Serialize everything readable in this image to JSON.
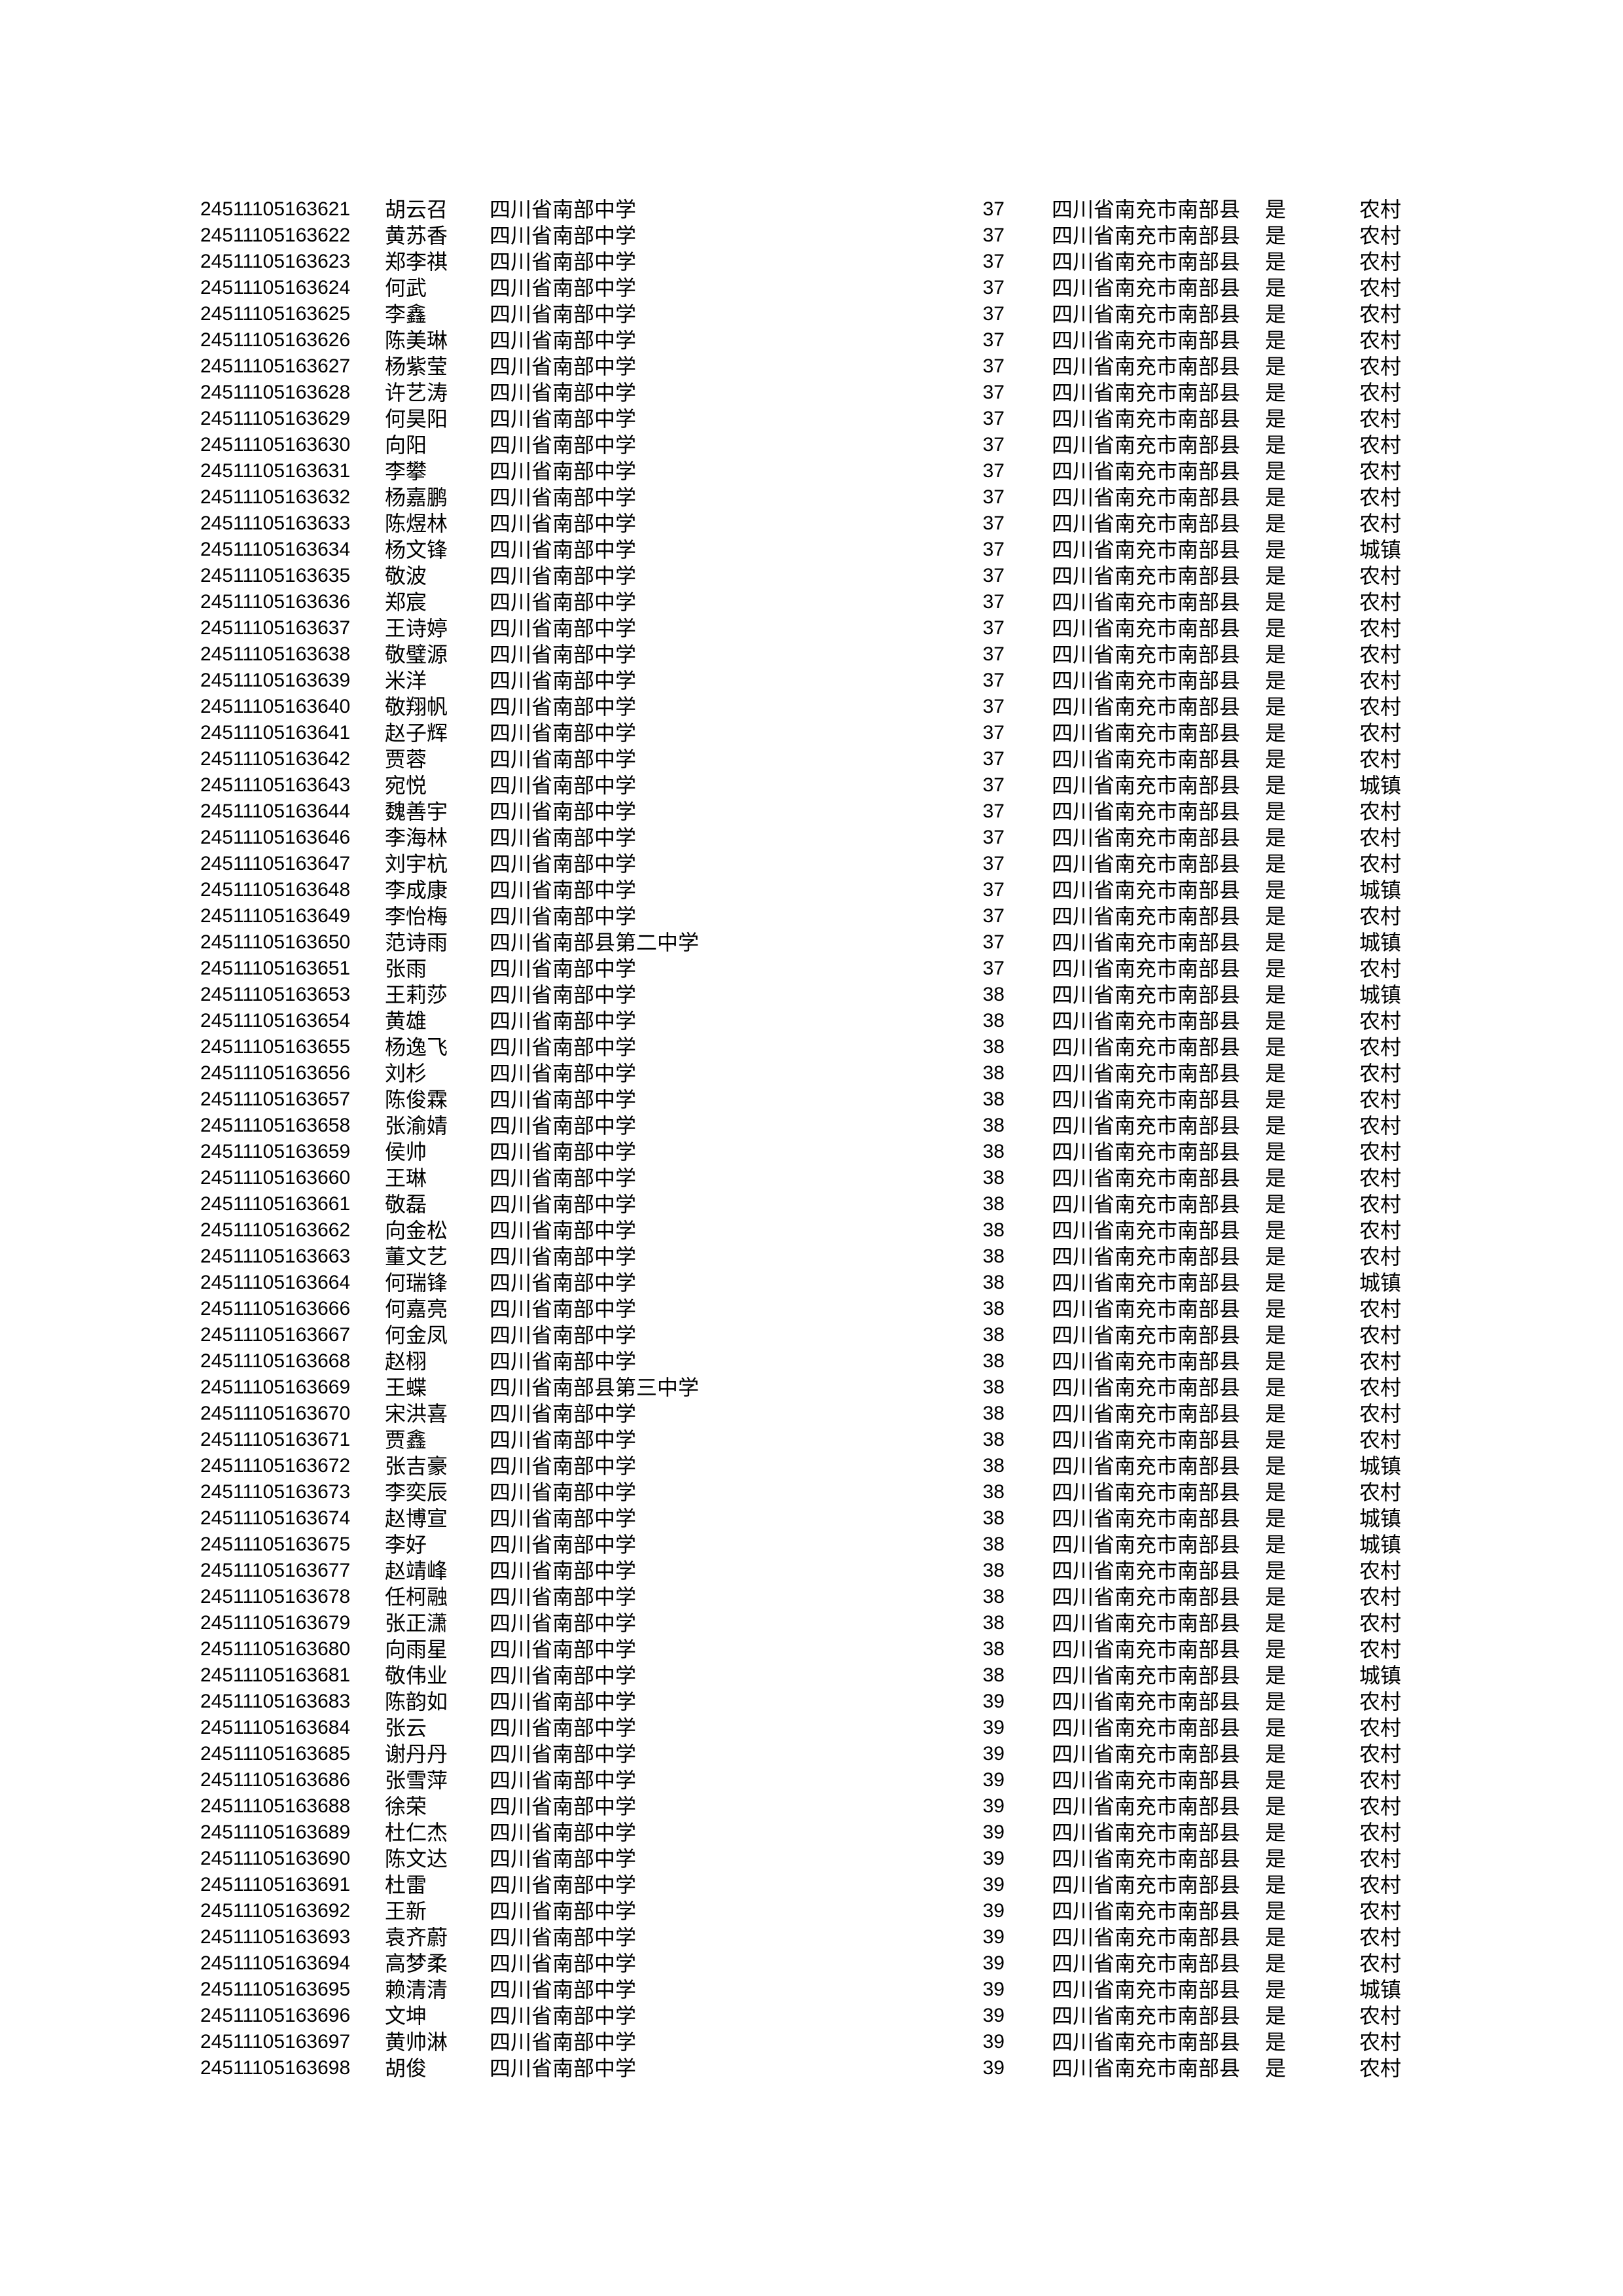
{
  "table": {
    "region_all": "四川省南充市南部县",
    "rows": [
      {
        "id": "24511105163621",
        "name": "胡云召",
        "school": "四川省南部中学",
        "num": "37",
        "region": "四川省南充市南部县",
        "flag": "是",
        "res": "农村"
      },
      {
        "id": "24511105163622",
        "name": "黄苏香",
        "school": "四川省南部中学",
        "num": "37",
        "region": "四川省南充市南部县",
        "flag": "是",
        "res": "农村"
      },
      {
        "id": "24511105163623",
        "name": "郑李祺",
        "school": "四川省南部中学",
        "num": "37",
        "region": "四川省南充市南部县",
        "flag": "是",
        "res": "农村"
      },
      {
        "id": "24511105163624",
        "name": "何武",
        "school": "四川省南部中学",
        "num": "37",
        "region": "四川省南充市南部县",
        "flag": "是",
        "res": "农村"
      },
      {
        "id": "24511105163625",
        "name": "李鑫",
        "school": "四川省南部中学",
        "num": "37",
        "region": "四川省南充市南部县",
        "flag": "是",
        "res": "农村"
      },
      {
        "id": "24511105163626",
        "name": "陈美琳",
        "school": "四川省南部中学",
        "num": "37",
        "region": "四川省南充市南部县",
        "flag": "是",
        "res": "农村"
      },
      {
        "id": "24511105163627",
        "name": "杨紫莹",
        "school": "四川省南部中学",
        "num": "37",
        "region": "四川省南充市南部县",
        "flag": "是",
        "res": "农村"
      },
      {
        "id": "24511105163628",
        "name": "许艺涛",
        "school": "四川省南部中学",
        "num": "37",
        "region": "四川省南充市南部县",
        "flag": "是",
        "res": "农村"
      },
      {
        "id": "24511105163629",
        "name": "何昊阳",
        "school": "四川省南部中学",
        "num": "37",
        "region": "四川省南充市南部县",
        "flag": "是",
        "res": "农村"
      },
      {
        "id": "24511105163630",
        "name": "向阳",
        "school": "四川省南部中学",
        "num": "37",
        "region": "四川省南充市南部县",
        "flag": "是",
        "res": "农村"
      },
      {
        "id": "24511105163631",
        "name": "李攀",
        "school": "四川省南部中学",
        "num": "37",
        "region": "四川省南充市南部县",
        "flag": "是",
        "res": "农村"
      },
      {
        "id": "24511105163632",
        "name": "杨嘉鹏",
        "school": "四川省南部中学",
        "num": "37",
        "region": "四川省南充市南部县",
        "flag": "是",
        "res": "农村"
      },
      {
        "id": "24511105163633",
        "name": "陈煜林",
        "school": "四川省南部中学",
        "num": "37",
        "region": "四川省南充市南部县",
        "flag": "是",
        "res": "农村"
      },
      {
        "id": "24511105163634",
        "name": "杨文锋",
        "school": "四川省南部中学",
        "num": "37",
        "region": "四川省南充市南部县",
        "flag": "是",
        "res": "城镇"
      },
      {
        "id": "24511105163635",
        "name": "敬波",
        "school": "四川省南部中学",
        "num": "37",
        "region": "四川省南充市南部县",
        "flag": "是",
        "res": "农村"
      },
      {
        "id": "24511105163636",
        "name": "郑宸",
        "school": "四川省南部中学",
        "num": "37",
        "region": "四川省南充市南部县",
        "flag": "是",
        "res": "农村"
      },
      {
        "id": "24511105163637",
        "name": "王诗婷",
        "school": "四川省南部中学",
        "num": "37",
        "region": "四川省南充市南部县",
        "flag": "是",
        "res": "农村"
      },
      {
        "id": "24511105163638",
        "name": "敬璧源",
        "school": "四川省南部中学",
        "num": "37",
        "region": "四川省南充市南部县",
        "flag": "是",
        "res": "农村"
      },
      {
        "id": "24511105163639",
        "name": "米洋",
        "school": "四川省南部中学",
        "num": "37",
        "region": "四川省南充市南部县",
        "flag": "是",
        "res": "农村"
      },
      {
        "id": "24511105163640",
        "name": "敬翔帆",
        "school": "四川省南部中学",
        "num": "37",
        "region": "四川省南充市南部县",
        "flag": "是",
        "res": "农村"
      },
      {
        "id": "24511105163641",
        "name": "赵子辉",
        "school": "四川省南部中学",
        "num": "37",
        "region": "四川省南充市南部县",
        "flag": "是",
        "res": "农村"
      },
      {
        "id": "24511105163642",
        "name": "贾蓉",
        "school": "四川省南部中学",
        "num": "37",
        "region": "四川省南充市南部县",
        "flag": "是",
        "res": "农村"
      },
      {
        "id": "24511105163643",
        "name": "宛悦",
        "school": "四川省南部中学",
        "num": "37",
        "region": "四川省南充市南部县",
        "flag": "是",
        "res": "城镇"
      },
      {
        "id": "24511105163644",
        "name": "魏善宇",
        "school": "四川省南部中学",
        "num": "37",
        "region": "四川省南充市南部县",
        "flag": "是",
        "res": "农村"
      },
      {
        "id": "24511105163646",
        "name": "李海林",
        "school": "四川省南部中学",
        "num": "37",
        "region": "四川省南充市南部县",
        "flag": "是",
        "res": "农村"
      },
      {
        "id": "24511105163647",
        "name": "刘宇杭",
        "school": "四川省南部中学",
        "num": "37",
        "region": "四川省南充市南部县",
        "flag": "是",
        "res": "农村"
      },
      {
        "id": "24511105163648",
        "name": "李成康",
        "school": "四川省南部中学",
        "num": "37",
        "region": "四川省南充市南部县",
        "flag": "是",
        "res": "城镇"
      },
      {
        "id": "24511105163649",
        "name": "李怡梅",
        "school": "四川省南部中学",
        "num": "37",
        "region": "四川省南充市南部县",
        "flag": "是",
        "res": "农村"
      },
      {
        "id": "24511105163650",
        "name": "范诗雨",
        "school": "四川省南部县第二中学",
        "num": "37",
        "region": "四川省南充市南部县",
        "flag": "是",
        "res": "城镇"
      },
      {
        "id": "24511105163651",
        "name": "张雨",
        "school": "四川省南部中学",
        "num": "37",
        "region": "四川省南充市南部县",
        "flag": "是",
        "res": "农村"
      },
      {
        "id": "24511105163653",
        "name": "王莉莎",
        "school": "四川省南部中学",
        "num": "38",
        "region": "四川省南充市南部县",
        "flag": "是",
        "res": "城镇"
      },
      {
        "id": "24511105163654",
        "name": "黄雄",
        "school": "四川省南部中学",
        "num": "38",
        "region": "四川省南充市南部县",
        "flag": "是",
        "res": "农村"
      },
      {
        "id": "24511105163655",
        "name": "杨逸飞",
        "school": "四川省南部中学",
        "num": "38",
        "region": "四川省南充市南部县",
        "flag": "是",
        "res": "农村"
      },
      {
        "id": "24511105163656",
        "name": "刘杉",
        "school": "四川省南部中学",
        "num": "38",
        "region": "四川省南充市南部县",
        "flag": "是",
        "res": "农村"
      },
      {
        "id": "24511105163657",
        "name": "陈俊霖",
        "school": "四川省南部中学",
        "num": "38",
        "region": "四川省南充市南部县",
        "flag": "是",
        "res": "农村"
      },
      {
        "id": "24511105163658",
        "name": "张渝婧",
        "school": "四川省南部中学",
        "num": "38",
        "region": "四川省南充市南部县",
        "flag": "是",
        "res": "农村"
      },
      {
        "id": "24511105163659",
        "name": "侯帅",
        "school": "四川省南部中学",
        "num": "38",
        "region": "四川省南充市南部县",
        "flag": "是",
        "res": "农村"
      },
      {
        "id": "24511105163660",
        "name": "王琳",
        "school": "四川省南部中学",
        "num": "38",
        "region": "四川省南充市南部县",
        "flag": "是",
        "res": "农村"
      },
      {
        "id": "24511105163661",
        "name": "敬磊",
        "school": "四川省南部中学",
        "num": "38",
        "region": "四川省南充市南部县",
        "flag": "是",
        "res": "农村"
      },
      {
        "id": "24511105163662",
        "name": "向金松",
        "school": "四川省南部中学",
        "num": "38",
        "region": "四川省南充市南部县",
        "flag": "是",
        "res": "农村"
      },
      {
        "id": "24511105163663",
        "name": "董文艺",
        "school": "四川省南部中学",
        "num": "38",
        "region": "四川省南充市南部县",
        "flag": "是",
        "res": "农村"
      },
      {
        "id": "24511105163664",
        "name": "何瑞锋",
        "school": "四川省南部中学",
        "num": "38",
        "region": "四川省南充市南部县",
        "flag": "是",
        "res": "城镇"
      },
      {
        "id": "24511105163666",
        "name": "何嘉亮",
        "school": "四川省南部中学",
        "num": "38",
        "region": "四川省南充市南部县",
        "flag": "是",
        "res": "农村"
      },
      {
        "id": "24511105163667",
        "name": "何金凤",
        "school": "四川省南部中学",
        "num": "38",
        "region": "四川省南充市南部县",
        "flag": "是",
        "res": "农村"
      },
      {
        "id": "24511105163668",
        "name": "赵栩",
        "school": "四川省南部中学",
        "num": "38",
        "region": "四川省南充市南部县",
        "flag": "是",
        "res": "农村"
      },
      {
        "id": "24511105163669",
        "name": "王蝶",
        "school": "四川省南部县第三中学",
        "num": "38",
        "region": "四川省南充市南部县",
        "flag": "是",
        "res": "农村"
      },
      {
        "id": "24511105163670",
        "name": "宋洪喜",
        "school": "四川省南部中学",
        "num": "38",
        "region": "四川省南充市南部县",
        "flag": "是",
        "res": "农村"
      },
      {
        "id": "24511105163671",
        "name": "贾鑫",
        "school": "四川省南部中学",
        "num": "38",
        "region": "四川省南充市南部县",
        "flag": "是",
        "res": "农村"
      },
      {
        "id": "24511105163672",
        "name": "张吉豪",
        "school": "四川省南部中学",
        "num": "38",
        "region": "四川省南充市南部县",
        "flag": "是",
        "res": "城镇"
      },
      {
        "id": "24511105163673",
        "name": "李奕辰",
        "school": "四川省南部中学",
        "num": "38",
        "region": "四川省南充市南部县",
        "flag": "是",
        "res": "农村"
      },
      {
        "id": "24511105163674",
        "name": "赵博宣",
        "school": "四川省南部中学",
        "num": "38",
        "region": "四川省南充市南部县",
        "flag": "是",
        "res": "城镇"
      },
      {
        "id": "24511105163675",
        "name": "李好",
        "school": "四川省南部中学",
        "num": "38",
        "region": "四川省南充市南部县",
        "flag": "是",
        "res": "城镇"
      },
      {
        "id": "24511105163677",
        "name": "赵靖峰",
        "school": "四川省南部中学",
        "num": "38",
        "region": "四川省南充市南部县",
        "flag": "是",
        "res": "农村"
      },
      {
        "id": "24511105163678",
        "name": "任柯融",
        "school": "四川省南部中学",
        "num": "38",
        "region": "四川省南充市南部县",
        "flag": "是",
        "res": "农村"
      },
      {
        "id": "24511105163679",
        "name": "张正潇",
        "school": "四川省南部中学",
        "num": "38",
        "region": "四川省南充市南部县",
        "flag": "是",
        "res": "农村"
      },
      {
        "id": "24511105163680",
        "name": "向雨星",
        "school": "四川省南部中学",
        "num": "38",
        "region": "四川省南充市南部县",
        "flag": "是",
        "res": "农村"
      },
      {
        "id": "24511105163681",
        "name": "敬伟业",
        "school": "四川省南部中学",
        "num": "38",
        "region": "四川省南充市南部县",
        "flag": "是",
        "res": "城镇"
      },
      {
        "id": "24511105163683",
        "name": "陈韵如",
        "school": "四川省南部中学",
        "num": "39",
        "region": "四川省南充市南部县",
        "flag": "是",
        "res": "农村"
      },
      {
        "id": "24511105163684",
        "name": "张云",
        "school": "四川省南部中学",
        "num": "39",
        "region": "四川省南充市南部县",
        "flag": "是",
        "res": "农村"
      },
      {
        "id": "24511105163685",
        "name": "谢丹丹",
        "school": "四川省南部中学",
        "num": "39",
        "region": "四川省南充市南部县",
        "flag": "是",
        "res": "农村"
      },
      {
        "id": "24511105163686",
        "name": "张雪萍",
        "school": "四川省南部中学",
        "num": "39",
        "region": "四川省南充市南部县",
        "flag": "是",
        "res": "农村"
      },
      {
        "id": "24511105163688",
        "name": "徐荣",
        "school": "四川省南部中学",
        "num": "39",
        "region": "四川省南充市南部县",
        "flag": "是",
        "res": "农村"
      },
      {
        "id": "24511105163689",
        "name": "杜仁杰",
        "school": "四川省南部中学",
        "num": "39",
        "region": "四川省南充市南部县",
        "flag": "是",
        "res": "农村"
      },
      {
        "id": "24511105163690",
        "name": "陈文达",
        "school": "四川省南部中学",
        "num": "39",
        "region": "四川省南充市南部县",
        "flag": "是",
        "res": "农村"
      },
      {
        "id": "24511105163691",
        "name": "杜雷",
        "school": "四川省南部中学",
        "num": "39",
        "region": "四川省南充市南部县",
        "flag": "是",
        "res": "农村"
      },
      {
        "id": "24511105163692",
        "name": "王新",
        "school": "四川省南部中学",
        "num": "39",
        "region": "四川省南充市南部县",
        "flag": "是",
        "res": "农村"
      },
      {
        "id": "24511105163693",
        "name": "袁齐蔚",
        "school": "四川省南部中学",
        "num": "39",
        "region": "四川省南充市南部县",
        "flag": "是",
        "res": "农村"
      },
      {
        "id": "24511105163694",
        "name": "高梦柔",
        "school": "四川省南部中学",
        "num": "39",
        "region": "四川省南充市南部县",
        "flag": "是",
        "res": "农村"
      },
      {
        "id": "24511105163695",
        "name": "赖清清",
        "school": "四川省南部中学",
        "num": "39",
        "region": "四川省南充市南部县",
        "flag": "是",
        "res": "城镇"
      },
      {
        "id": "24511105163696",
        "name": "文坤",
        "school": "四川省南部中学",
        "num": "39",
        "region": "四川省南充市南部县",
        "flag": "是",
        "res": "农村"
      },
      {
        "id": "24511105163697",
        "name": "黄帅淋",
        "school": "四川省南部中学",
        "num": "39",
        "region": "四川省南充市南部县",
        "flag": "是",
        "res": "农村"
      },
      {
        "id": "24511105163698",
        "name": "胡俊",
        "school": "四川省南部中学",
        "num": "39",
        "region": "四川省南充市南部县",
        "flag": "是",
        "res": "农村"
      }
    ]
  }
}
